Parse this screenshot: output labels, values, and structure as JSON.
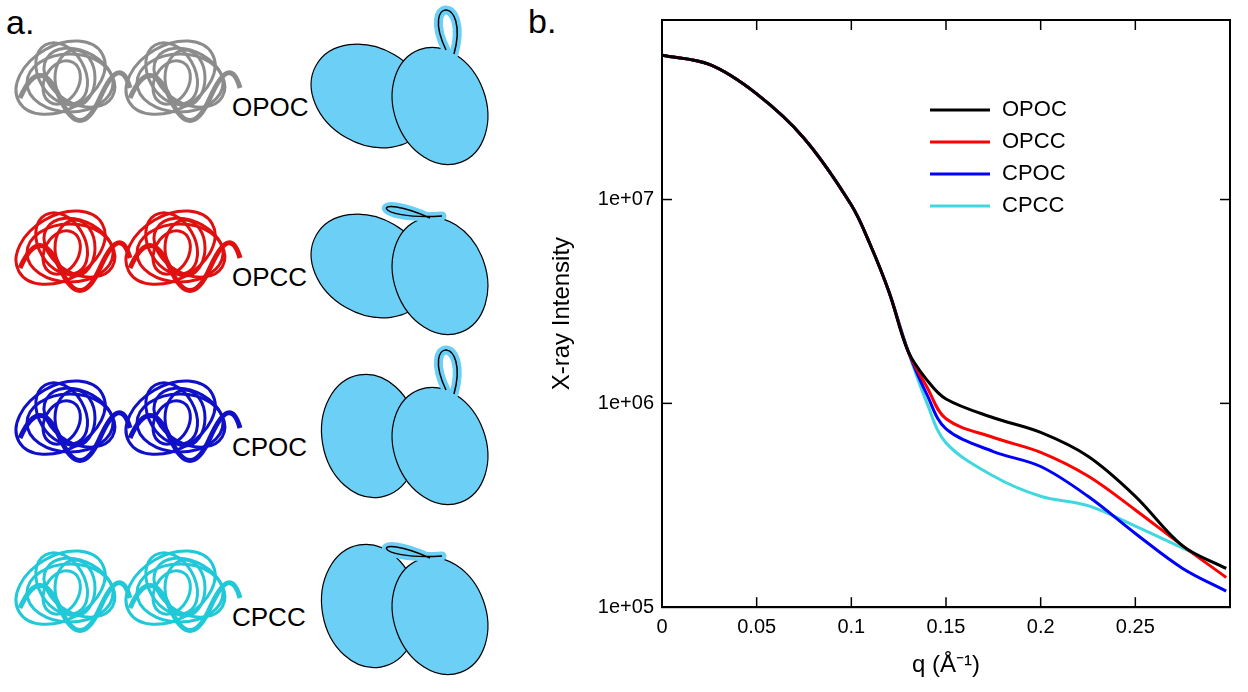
{
  "panel_a": {
    "label": "a.",
    "items": [
      {
        "name": "OPOC",
        "color": "#8c8c8c"
      },
      {
        "name": "OPCC",
        "color": "#e01010"
      },
      {
        "name": "CPOC",
        "color": "#1010c8"
      },
      {
        "name": "CPCC",
        "color": "#20c8d8"
      }
    ]
  },
  "chart_data": {
    "type": "line",
    "label": "b.",
    "x_label": "q (Å⁻¹)",
    "y_label": "X-ray Intensity",
    "x": [
      0,
      0.025,
      0.05,
      0.075,
      0.1,
      0.11,
      0.12,
      0.13,
      0.14,
      0.15,
      0.175,
      0.2,
      0.225,
      0.25,
      0.275,
      0.298
    ],
    "series": [
      {
        "name": "OPOC",
        "color": "#000000",
        "values": [
          51000000,
          46000000,
          33000000,
          20000000,
          9400000,
          6000000,
          3500000,
          1800000,
          1300000,
          1050000,
          850000,
          720000,
          550000,
          350000,
          200000,
          155000
        ]
      },
      {
        "name": "OPCC",
        "color": "#ff0000",
        "values": [
          51000000,
          46000000,
          33000000,
          20000000,
          9400000,
          6000000,
          3500000,
          1800000,
          1200000,
          840000,
          680000,
          575000,
          440000,
          300000,
          200000,
          140000
        ]
      },
      {
        "name": "CPOC",
        "color": "#0000ff",
        "values": [
          51000000,
          46000000,
          33000000,
          20000000,
          9400000,
          6000000,
          3500000,
          1800000,
          1100000,
          750000,
          580000,
          490000,
          350000,
          230000,
          155000,
          120000
        ]
      },
      {
        "name": "CPCC",
        "color": "#40d8e0",
        "values": [
          51000000,
          46000000,
          33000000,
          20000000,
          9400000,
          6000000,
          3500000,
          1800000,
          1000000,
          640000,
          440000,
          350000,
          315000,
          250000,
          195000,
          155000
        ]
      }
    ],
    "xlim": [
      0,
      0.3
    ],
    "xticks": [
      0,
      0.05,
      0.1,
      0.15,
      0.2,
      0.25
    ],
    "ylim": [
      100000,
      76000000
    ],
    "yticks": [
      {
        "value": 100000,
        "label": "1e+05"
      },
      {
        "value": 1000000,
        "label": "1e+06"
      },
      {
        "value": 10000000,
        "label": "1e+07"
      }
    ],
    "log": "y",
    "grid": false,
    "legend": "upper right"
  }
}
